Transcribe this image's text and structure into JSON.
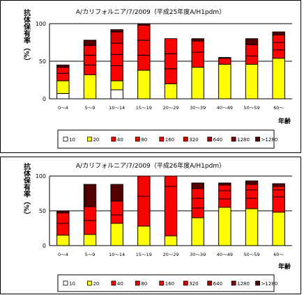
{
  "colors": {
    "10": "#ffffff",
    "20": "#ffff00",
    "40": "#ff0000",
    "80": "#ff0000",
    "160": "#ff0000",
    "320": "#dd0000",
    "640": "#aa0000",
    "1280": "#880000",
    "gt1280": "#550000",
    "border": "#000000"
  },
  "chart_data": [
    {
      "type": "bar",
      "stacked": true,
      "title": "A/カリフォルニア/7/2009（平成25年度A/H1pdm）",
      "ylabel": "抗体保有率（%）",
      "xlabel": "年齢",
      "ylim": [
        0,
        100
      ],
      "yticks": [
        0,
        50,
        100
      ],
      "categories": [
        "0〜4",
        "5〜9",
        "10〜14",
        "15〜19",
        "20〜29",
        "30〜39",
        "40〜49",
        "50〜59",
        "60〜"
      ],
      "legend": [
        "10",
        "20",
        "40",
        "80",
        "160",
        "320",
        "640",
        "1280",
        ">1280"
      ],
      "legend_position": "bottom",
      "series": [
        {
          "name": "10",
          "values": [
            7,
            0,
            12,
            0,
            0,
            0,
            0,
            0,
            0
          ]
        },
        {
          "name": "20",
          "values": [
            17,
            32,
            12,
            38,
            20,
            42,
            46,
            46,
            54
          ]
        },
        {
          "name": "40",
          "values": [
            10,
            13,
            20,
            20,
            20,
            20,
            0,
            11,
            11
          ]
        },
        {
          "name": "80",
          "values": [
            8,
            13,
            15,
            20,
            20,
            15,
            8,
            15,
            10
          ]
        },
        {
          "name": "160",
          "values": [
            0,
            13,
            15,
            20,
            20,
            0,
            0,
            0,
            10
          ]
        },
        {
          "name": "320",
          "values": [
            0,
            0,
            15,
            0,
            0,
            0,
            0,
            0,
            0
          ]
        },
        {
          "name": "640",
          "values": [
            0,
            0,
            0,
            0,
            0,
            0,
            0,
            0,
            0
          ]
        },
        {
          "name": "1280",
          "values": [
            0,
            0,
            0,
            0,
            0,
            0,
            0,
            0,
            0
          ]
        },
        {
          "name": ">1280",
          "values": [
            3,
            7,
            3,
            2,
            0,
            3,
            1,
            8,
            4
          ]
        }
      ]
    },
    {
      "type": "bar",
      "stacked": true,
      "title": "A/カリフォルニア/7/2009（平成26年度A/H1pdm）",
      "ylabel": "抗体保有率（%）",
      "xlabel": "年齢",
      "ylim": [
        0,
        100
      ],
      "yticks": [
        0,
        50,
        100
      ],
      "categories": [
        "0〜4",
        "5〜9",
        "10〜14",
        "15〜19",
        "20〜29",
        "30〜39",
        "40〜49",
        "50〜59",
        "60〜"
      ],
      "legend": [
        "10",
        "20",
        "40",
        "80",
        "160",
        "320",
        "640",
        "1280",
        ">1280"
      ],
      "legend_position": "bottom",
      "series": [
        {
          "name": "10",
          "values": [
            0,
            0,
            0,
            0,
            0,
            0,
            0,
            0,
            0
          ]
        },
        {
          "name": "20",
          "values": [
            15,
            16,
            32,
            28,
            14,
            40,
            55,
            53,
            48
          ]
        },
        {
          "name": "40",
          "values": [
            17,
            20,
            12,
            43,
            71,
            14,
            12,
            15,
            22
          ]
        },
        {
          "name": "80",
          "values": [
            15,
            20,
            20,
            29,
            15,
            14,
            12,
            12,
            10
          ]
        },
        {
          "name": "160",
          "values": [
            0,
            0,
            0,
            0,
            0,
            14,
            8,
            8,
            5
          ]
        },
        {
          "name": "320",
          "values": [
            0,
            0,
            0,
            0,
            0,
            0,
            0,
            0,
            0
          ]
        },
        {
          "name": "640",
          "values": [
            0,
            0,
            0,
            0,
            0,
            0,
            0,
            0,
            0
          ]
        },
        {
          "name": "1280",
          "values": [
            0,
            0,
            0,
            0,
            0,
            0,
            0,
            0,
            0
          ]
        },
        {
          "name": ">1280",
          "values": [
            3,
            32,
            24,
            0,
            0,
            8,
            3,
            5,
            4
          ]
        }
      ]
    }
  ]
}
